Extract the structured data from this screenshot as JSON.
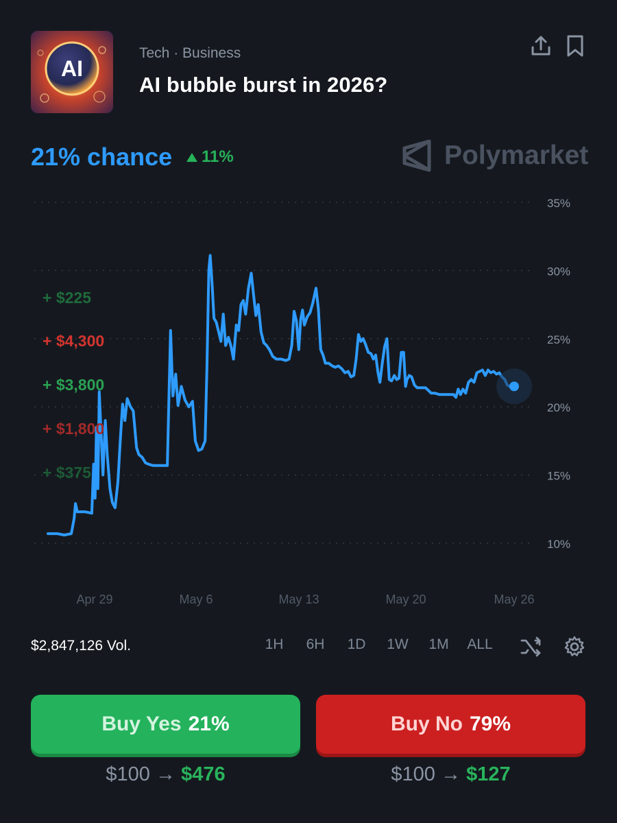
{
  "market": {
    "thumbnail_text": "AI",
    "category": "Tech · Business",
    "title": "AI bubble burst in 2026?"
  },
  "header_actions": {
    "share_icon": "share-icon",
    "bookmark_icon": "bookmark-icon"
  },
  "odds": {
    "chance": "21% chance",
    "delta": "11%",
    "delta_direction": "up"
  },
  "brand": {
    "name": "Polymarket"
  },
  "colors": {
    "accent": "#2e9bff",
    "yes": "#24b25c",
    "no": "#cc2020",
    "background": "#15191f"
  },
  "recent_trades": [
    {
      "text": "+ $225",
      "side": "yes",
      "color": "#1f6b3c"
    },
    {
      "text": "+ $4,300",
      "side": "no",
      "color": "#d2342e"
    },
    {
      "text": "+ $3,800",
      "side": "yes",
      "color": "#2aa153"
    },
    {
      "text": "+ $1,800",
      "side": "no",
      "color": "#a32a2a"
    },
    {
      "text": "+ $375",
      "side": "yes",
      "color": "#1d5a36"
    }
  ],
  "chart_data": {
    "type": "line",
    "series": [
      {
        "values": [
          [
            0,
            10.7
          ],
          [
            2,
            10.7
          ],
          [
            3.5,
            10.6
          ],
          [
            5,
            10.7
          ],
          [
            5.6,
            11.8
          ],
          [
            5.9,
            12.9
          ],
          [
            6.3,
            12.3
          ],
          [
            8,
            12.3
          ],
          [
            9.4,
            12.2
          ],
          [
            9.8,
            15.8
          ],
          [
            10.1,
            13.3
          ],
          [
            10.4,
            18.5
          ],
          [
            10.7,
            14.0
          ],
          [
            11.0,
            21.1
          ],
          [
            11.4,
            18.0
          ],
          [
            11.8,
            15.0
          ],
          [
            12.3,
            19.0
          ],
          [
            12.7,
            16.5
          ],
          [
            13.3,
            14.0
          ],
          [
            13.8,
            13.0
          ],
          [
            14.4,
            12.6
          ],
          [
            15.0,
            14.5
          ],
          [
            15.5,
            17.5
          ],
          [
            16.0,
            20.2
          ],
          [
            16.5,
            19.0
          ],
          [
            17.0,
            20.6
          ],
          [
            17.7,
            20.0
          ],
          [
            18.3,
            19.7
          ],
          [
            19.0,
            17.0
          ],
          [
            19.5,
            16.5
          ],
          [
            20.2,
            16.3
          ],
          [
            20.9,
            15.9
          ],
          [
            21.5,
            15.8
          ],
          [
            22.5,
            15.7
          ],
          [
            24,
            15.7
          ],
          [
            25.6,
            15.7
          ],
          [
            25.9,
            20.0
          ],
          [
            26.3,
            25.6
          ],
          [
            26.8,
            20.8
          ],
          [
            27.4,
            22.4
          ],
          [
            27.9,
            20.1
          ],
          [
            28.6,
            21.5
          ],
          [
            29.4,
            20.5
          ],
          [
            30.2,
            20.0
          ],
          [
            31.0,
            20.4
          ],
          [
            31.6,
            17.5
          ],
          [
            32.3,
            16.8
          ],
          [
            33.0,
            16.9
          ],
          [
            33.7,
            17.5
          ],
          [
            34.1,
            23.0
          ],
          [
            34.5,
            30.0
          ],
          [
            34.8,
            31.1
          ],
          [
            35.2,
            29.0
          ],
          [
            35.6,
            26.5
          ],
          [
            36.1,
            26.2
          ],
          [
            36.6,
            25.5
          ],
          [
            37.1,
            24.8
          ],
          [
            37.6,
            26.8
          ],
          [
            38.1,
            24.5
          ],
          [
            38.7,
            25.1
          ],
          [
            39.3,
            24.4
          ],
          [
            39.8,
            23.5
          ],
          [
            40.4,
            26.0
          ],
          [
            40.9,
            25.6
          ],
          [
            41.4,
            27.5
          ],
          [
            41.9,
            27.8
          ],
          [
            42.4,
            26.8
          ],
          [
            43.0,
            28.7
          ],
          [
            43.6,
            29.8
          ],
          [
            44.1,
            28.2
          ],
          [
            44.6,
            26.7
          ],
          [
            45.1,
            27.5
          ],
          [
            45.7,
            25.5
          ],
          [
            46.3,
            24.7
          ],
          [
            46.9,
            24.5
          ],
          [
            47.5,
            24.2
          ],
          [
            48.2,
            23.7
          ],
          [
            49,
            23.5
          ],
          [
            50,
            23.5
          ],
          [
            51,
            23.4
          ],
          [
            51.7,
            23.5
          ],
          [
            52.3,
            24.5
          ],
          [
            52.8,
            27.0
          ],
          [
            53.3,
            26.3
          ],
          [
            53.8,
            24.2
          ],
          [
            54.2,
            26.4
          ],
          [
            54.6,
            27.1
          ],
          [
            55.0,
            26.0
          ],
          [
            55.6,
            26.6
          ],
          [
            56.2,
            26.9
          ],
          [
            56.8,
            27.6
          ],
          [
            57.5,
            28.7
          ],
          [
            58.0,
            27.2
          ],
          [
            58.5,
            24.2
          ],
          [
            59.0,
            23.8
          ],
          [
            59.5,
            23.2
          ],
          [
            60.2,
            23.2
          ],
          [
            61.0,
            23.0
          ],
          [
            61.6,
            22.9
          ],
          [
            62.3,
            23.0
          ],
          [
            63.0,
            22.8
          ],
          [
            63.7,
            22.5
          ],
          [
            64.4,
            22.6
          ],
          [
            65.0,
            22.2
          ],
          [
            65.6,
            22.3
          ],
          [
            66.1,
            23.5
          ],
          [
            66.6,
            25.3
          ],
          [
            67.1,
            24.8
          ],
          [
            67.6,
            25.0
          ],
          [
            68.1,
            24.6
          ],
          [
            68.7,
            24.0
          ],
          [
            69.3,
            23.9
          ],
          [
            69.8,
            23.5
          ],
          [
            70.3,
            23.8
          ],
          [
            70.8,
            22.5
          ],
          [
            71.2,
            21.8
          ],
          [
            71.7,
            23.2
          ],
          [
            72.2,
            24.4
          ],
          [
            72.7,
            25.0
          ],
          [
            73.2,
            22.0
          ],
          [
            73.7,
            21.9
          ],
          [
            74.3,
            22.3
          ],
          [
            74.8,
            22.0
          ],
          [
            75.3,
            22.1
          ],
          [
            75.8,
            24.0
          ],
          [
            76.3,
            24.0
          ],
          [
            76.7,
            21.5
          ],
          [
            77.0,
            22.0
          ],
          [
            77.5,
            22.3
          ],
          [
            78.0,
            22.2
          ],
          [
            78.6,
            21.6
          ],
          [
            79.2,
            21.4
          ],
          [
            80,
            21.4
          ],
          [
            81,
            21.4
          ],
          [
            81.6,
            21.2
          ],
          [
            82.2,
            21.0
          ],
          [
            83,
            21.0
          ],
          [
            84,
            20.9
          ],
          [
            85,
            20.9
          ],
          [
            86,
            20.9
          ],
          [
            87,
            20.9
          ],
          [
            87.5,
            20.7
          ],
          [
            88.0,
            21.3
          ],
          [
            88.5,
            20.9
          ],
          [
            89.0,
            21.3
          ],
          [
            89.6,
            21.0
          ],
          [
            90.2,
            21.8
          ],
          [
            90.8,
            22.0
          ],
          [
            91.4,
            21.8
          ],
          [
            92.0,
            22.5
          ],
          [
            92.6,
            22.6
          ],
          [
            93.2,
            22.7
          ],
          [
            93.8,
            22.3
          ],
          [
            94.4,
            22.7
          ],
          [
            95.0,
            22.5
          ],
          [
            95.6,
            22.6
          ],
          [
            96.2,
            22.4
          ],
          [
            96.8,
            22.5
          ],
          [
            97.4,
            22.2
          ],
          [
            98.0,
            22.0
          ],
          [
            98.5,
            21.6
          ],
          [
            99.0,
            21.5
          ],
          [
            100,
            21.5
          ]
        ]
      }
    ],
    "y_ticks": [
      "35%",
      "30%",
      "25%",
      "20%",
      "15%",
      "10%"
    ],
    "y_tick_values": [
      35,
      30,
      25,
      20,
      15,
      10
    ],
    "x_ticks": [
      "Apr 29",
      "May 6",
      "May 13",
      "May 20",
      "May 26"
    ],
    "ylim": [
      10,
      35
    ],
    "grid": true
  },
  "footer": {
    "volume": "$2,847,126 Vol.",
    "ranges": [
      "1H",
      "6H",
      "1D",
      "1W",
      "1M",
      "ALL"
    ],
    "shuffle_icon": "shuffle-icon",
    "settings_icon": "gear-icon"
  },
  "actions": {
    "yes": {
      "label": "Buy Yes",
      "pct": "21%",
      "from": "$100",
      "arrow": "→",
      "to": "$476"
    },
    "no": {
      "label": "Buy No",
      "pct": "79%",
      "from": "$100",
      "arrow": "→",
      "to": "$127"
    }
  }
}
